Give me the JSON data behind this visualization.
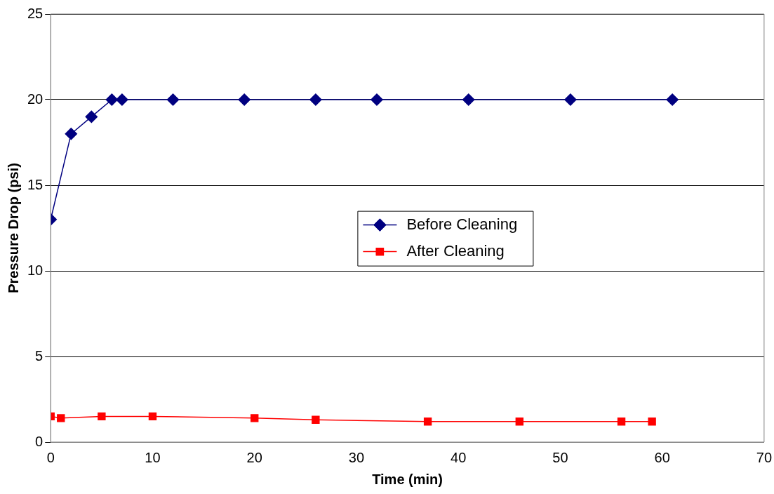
{
  "chart_data": {
    "type": "line",
    "xlabel": "Time (min)",
    "ylabel": "Pressure Drop (psi)",
    "xlim": [
      0,
      70
    ],
    "xticks": [
      0,
      10,
      20,
      30,
      40,
      50,
      60,
      70
    ],
    "ylim": [
      0,
      25
    ],
    "yticks": [
      0,
      5,
      10,
      15,
      20,
      25
    ],
    "grid": "y",
    "legend": "center",
    "line_style": "solid",
    "series": [
      {
        "name": "Before Cleaning",
        "color": "#000080",
        "marker": "diamond",
        "x": [
          0,
          2,
          4,
          6,
          7,
          12,
          19,
          26,
          32,
          41,
          51,
          61
        ],
        "values": [
          13,
          18,
          19,
          20,
          20,
          20,
          20,
          20,
          20,
          20,
          20,
          20
        ]
      },
      {
        "name": "After Cleaning",
        "color": "#ff0000",
        "marker": "square",
        "x": [
          0,
          1,
          5,
          10,
          20,
          26,
          37,
          46,
          56,
          59
        ],
        "values": [
          1.5,
          1.4,
          1.5,
          1.5,
          1.4,
          1.3,
          1.2,
          1.2,
          1.2,
          1.2
        ]
      }
    ]
  }
}
